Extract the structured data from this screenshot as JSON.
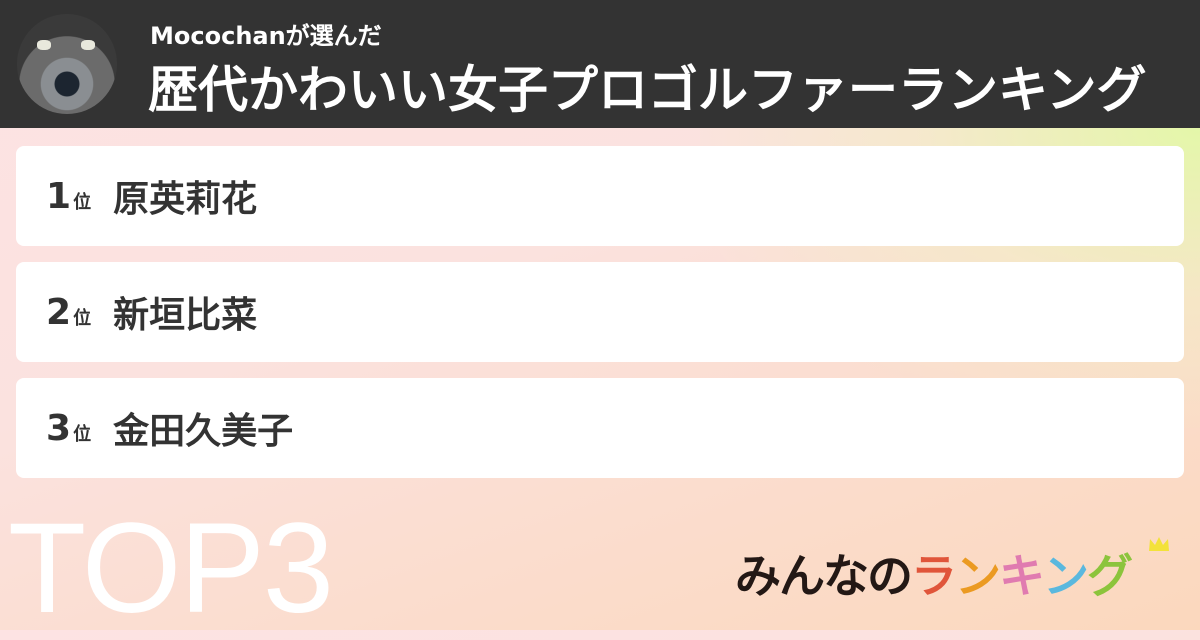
{
  "header": {
    "subtitle": "Mocochanが選んだ",
    "title": "歴代かわいい女子プロゴルファーランキング"
  },
  "rank_suffix": "位",
  "items": [
    {
      "rank": "1",
      "name": "原英莉花"
    },
    {
      "rank": "2",
      "name": "新垣比菜"
    },
    {
      "rank": "3",
      "name": "金田久美子"
    }
  ],
  "badge": "TOP3",
  "logo": {
    "text": "みんなのランキング",
    "parts": [
      "みんなの",
      "ラ",
      "ン",
      "キ",
      "ン",
      "グ"
    ],
    "colors": [
      "#231815",
      "#e0553a",
      "#eb9a22",
      "#e07bb0",
      "#5ab8de",
      "#8cc43c"
    ]
  },
  "colors": {
    "header_bg": "#333333",
    "crown": "#f3e23a"
  }
}
